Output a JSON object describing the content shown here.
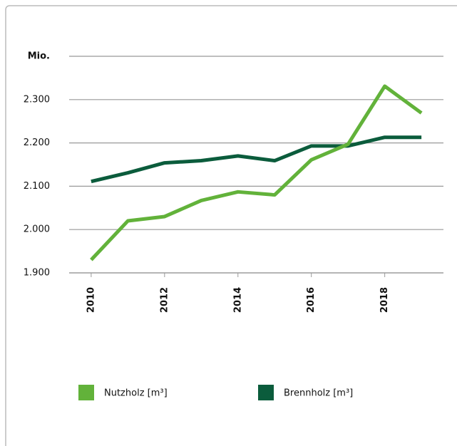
{
  "chart_data": {
    "type": "line",
    "x": [
      2010,
      2011,
      2012,
      2013,
      2014,
      2015,
      2016,
      2017,
      2018,
      2019
    ],
    "series": [
      {
        "name": "Nutzholz [m³]",
        "color": "#62b23a",
        "values": [
          1930,
          2020,
          2030,
          2067,
          2087,
          2080,
          2161,
          2197,
          2331,
          2269
        ]
      },
      {
        "name": "Brennholz [m³]",
        "color": "#0b5c3c",
        "values": [
          2111,
          2131,
          2154,
          2159,
          2170,
          2159,
          2193,
          2193,
          2213,
          2213
        ]
      }
    ],
    "xlim": [
      2009.4,
      2019.6
    ],
    "xticks": [
      2010,
      2012,
      2014,
      2016,
      2018
    ],
    "ylim": [
      1900,
      2400
    ],
    "yticks": [
      {
        "value": 1900,
        "label": "1.900"
      },
      {
        "value": 2000,
        "label": "2.000"
      },
      {
        "value": 2100,
        "label": "2.100"
      },
      {
        "value": 2200,
        "label": "2.200"
      },
      {
        "value": 2300,
        "label": "2.300"
      },
      {
        "value": 2400,
        "label": "Mio."
      }
    ],
    "grid": true,
    "legend": "bottom"
  }
}
